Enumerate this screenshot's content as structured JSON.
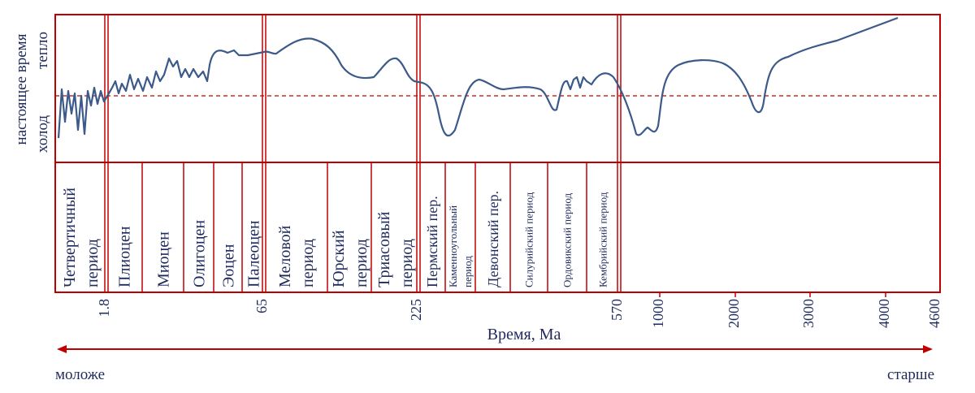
{
  "side_labels": {
    "present": "настоящее время",
    "warm": "тепло",
    "cold": "холод"
  },
  "periods": [
    {
      "lines": [
        "Четвертичный",
        "период"
      ]
    },
    {
      "lines": [
        "Плиоцен"
      ]
    },
    {
      "lines": [
        "Миоцен"
      ]
    },
    {
      "lines": [
        "Олигоцен"
      ]
    },
    {
      "lines": [
        "Эоцен"
      ]
    },
    {
      "lines": [
        "Палеоцен"
      ]
    },
    {
      "lines": [
        "Меловой",
        "период"
      ]
    },
    {
      "lines": [
        "Юрский",
        "период"
      ]
    },
    {
      "lines": [
        "Триасовый",
        "период"
      ]
    },
    {
      "lines": [
        "Пермский пер."
      ]
    },
    {
      "lines": [
        "Каменноугольный",
        "период"
      ]
    },
    {
      "lines": [
        "Девонский пер."
      ]
    },
    {
      "lines": [
        "Силурийский период"
      ]
    },
    {
      "lines": [
        "Ордовикский период"
      ]
    },
    {
      "lines": [
        "Кембрийский период"
      ]
    }
  ],
  "ticks": [
    "1.8",
    "65",
    "225",
    "570",
    "1000",
    "2000",
    "3000",
    "4000",
    "4600"
  ],
  "x_title": "Время, Ма",
  "younger": "моложе",
  "older": "старше"
}
